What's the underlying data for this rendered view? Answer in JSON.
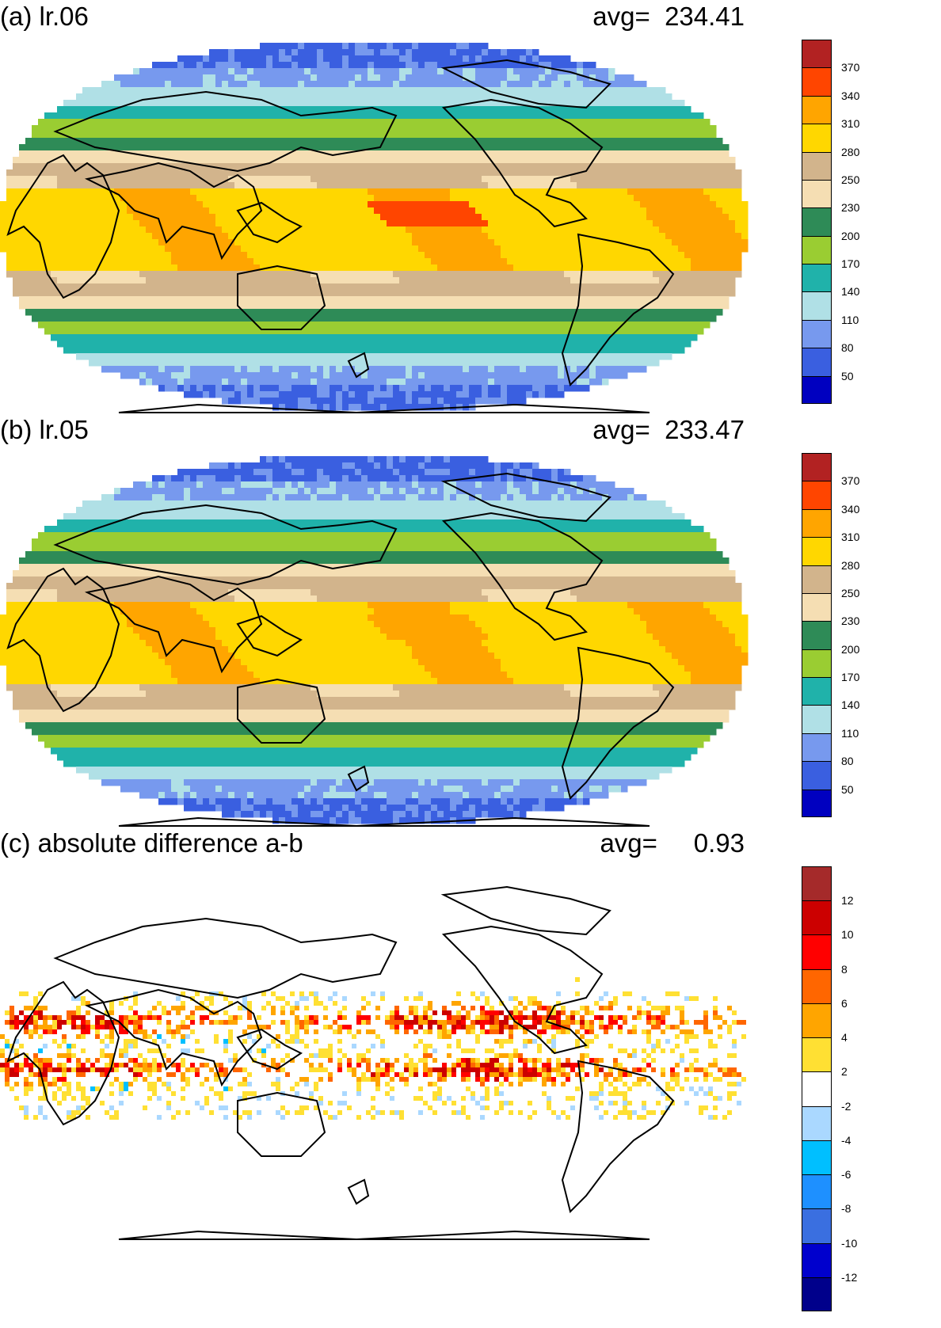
{
  "panels": [
    {
      "title": "(a) lr.06",
      "avg_label": "avg=",
      "avg_value": "234.41",
      "colorbar": {
        "colors": [
          "#0000c0",
          "#3a5fe0",
          "#7799ee",
          "#b0e0e6",
          "#20b2aa",
          "#9acd32",
          "#2e8b57",
          "#f5deb3",
          "#d2b48c",
          "#ffd700",
          "#ffa500",
          "#ff4500",
          "#b22222"
        ],
        "labels": [
          "50",
          "80",
          "110",
          "140",
          "170",
          "200",
          "230",
          "250",
          "280",
          "310",
          "340",
          "370"
        ]
      },
      "map_kind": "field_a"
    },
    {
      "title": "(b) lr.05",
      "avg_label": "avg=",
      "avg_value": "233.47",
      "colorbar": {
        "colors": [
          "#0000c0",
          "#3a5fe0",
          "#7799ee",
          "#b0e0e6",
          "#20b2aa",
          "#9acd32",
          "#2e8b57",
          "#f5deb3",
          "#d2b48c",
          "#ffd700",
          "#ffa500",
          "#ff4500",
          "#b22222"
        ],
        "labels": [
          "50",
          "80",
          "110",
          "140",
          "170",
          "200",
          "230",
          "250",
          "280",
          "310",
          "340",
          "370"
        ]
      },
      "map_kind": "field_b"
    },
    {
      "title": "(c) absolute difference a-b",
      "avg_label": "avg=",
      "avg_value": "0.93",
      "colorbar": {
        "colors": [
          "#00008b",
          "#0000cd",
          "#3a6fe0",
          "#1e90ff",
          "#00bfff",
          "#aad8ff",
          "#ffffff",
          "#ffe033",
          "#ffa500",
          "#ff6600",
          "#ff0000",
          "#cc0000",
          "#a52a2a"
        ],
        "labels": [
          "-12",
          "-10",
          "-8",
          "-6",
          "-4",
          "-2",
          "2",
          "4",
          "6",
          "8",
          "10",
          "12"
        ]
      },
      "map_kind": "difference"
    }
  ]
}
